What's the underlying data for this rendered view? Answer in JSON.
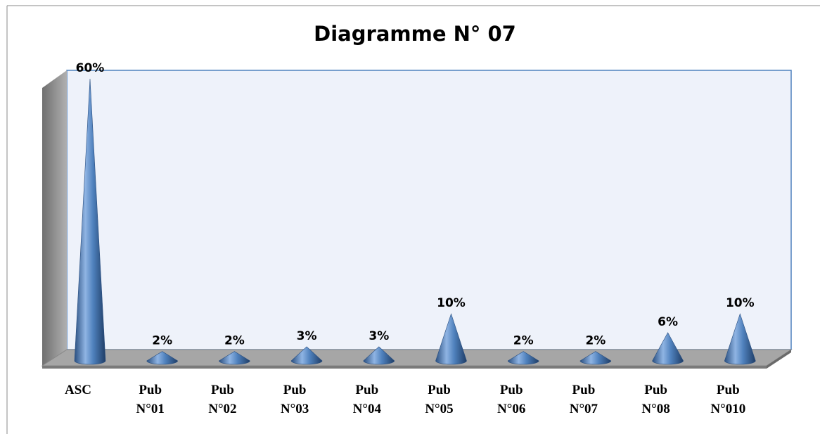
{
  "chart_data": {
    "type": "cone",
    "title": "Diagramme N° 07",
    "categories": [
      [
        "ASC"
      ],
      [
        "Pub",
        "N°01"
      ],
      [
        "Pub",
        "N°02"
      ],
      [
        "Pub",
        "N°03"
      ],
      [
        "Pub",
        "N°04"
      ],
      [
        "Pub",
        "N°05"
      ],
      [
        "Pub",
        "N°06"
      ],
      [
        "Pub",
        "N°07"
      ],
      [
        "Pub",
        "N°08"
      ],
      [
        "Pub",
        "N°010"
      ]
    ],
    "values": [
      60,
      2,
      2,
      3,
      3,
      10,
      2,
      2,
      6,
      10
    ],
    "value_labels": [
      "60%",
      "2%",
      "2%",
      "3%",
      "3%",
      "10%",
      "2%",
      "2%",
      "6%",
      "10%"
    ],
    "color": "#4f81bd",
    "ylim": [
      0,
      60
    ]
  }
}
